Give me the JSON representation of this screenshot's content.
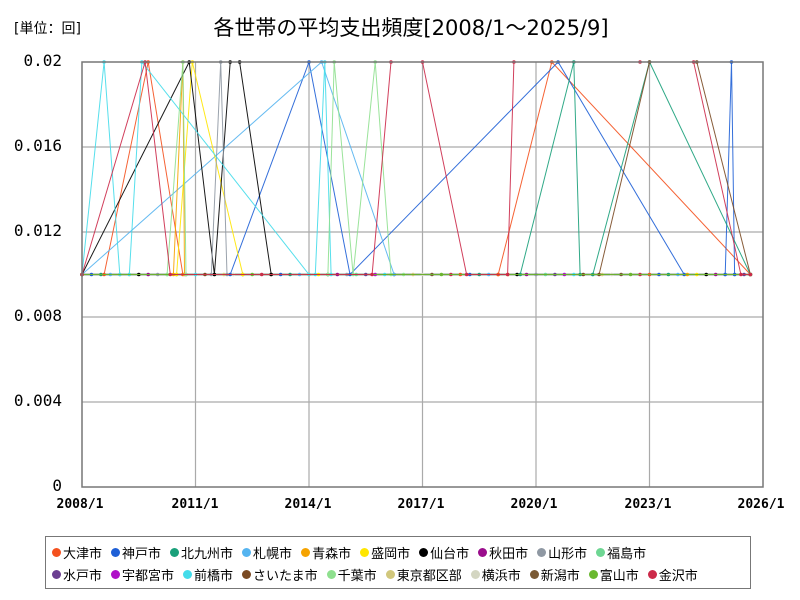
{
  "header": {
    "unit_label": "[単位：回]",
    "title": "各世帯の平均支出頻度[2008/1～2025/9]"
  },
  "chart_data": {
    "type": "line",
    "title": "各世帯の平均支出頻度[2008/1～2025/9]",
    "unit": "[単位：回]",
    "xlabel": "",
    "ylabel": "",
    "ylim": [
      0,
      0.02
    ],
    "xlim": [
      "2008/1",
      "2026/1"
    ],
    "grid": true,
    "legend_position": "bottom",
    "y_ticks": [
      "0.02",
      "0.016",
      "0.012",
      "0.008",
      "0.004",
      "0"
    ],
    "x_ticks": [
      "2008/1",
      "2011/1",
      "2014/1",
      "2017/1",
      "2020/1",
      "2023/1",
      "2026/1"
    ],
    "baseline_value": 0.01,
    "note": "Series mostly sit at 0.01; spikes to 0.02 listed as [month_index_from_2008/1, value] points (month 0 = 2008/1, month 212 = 2025/9).",
    "series": [
      {
        "name": "大津市",
        "color": "#f4511e",
        "points": [
          [
            0,
            0.01
          ],
          [
            7,
            0.01
          ],
          [
            21,
            0.02
          ],
          [
            32,
            0.01
          ],
          [
            132,
            0.01
          ],
          [
            149,
            0.02
          ],
          [
            212,
            0.01
          ]
        ]
      },
      {
        "name": "神戸市",
        "color": "#1e5fd6",
        "points": [
          [
            0,
            0.01
          ],
          [
            47,
            0.01
          ],
          [
            72,
            0.02
          ],
          [
            85,
            0.01
          ],
          [
            151,
            0.02
          ],
          [
            191,
            0.01
          ],
          [
            204,
            0.01
          ],
          [
            206,
            0.02
          ],
          [
            207,
            0.01
          ],
          [
            212,
            0.01
          ]
        ]
      },
      {
        "name": "北九州市",
        "color": "#1aa07a",
        "points": [
          [
            0,
            0.01
          ],
          [
            139,
            0.01
          ],
          [
            156,
            0.02
          ],
          [
            158,
            0.01
          ],
          [
            162,
            0.01
          ],
          [
            180,
            0.02
          ],
          [
            212,
            0.01
          ]
        ]
      },
      {
        "name": "札幌市",
        "color": "#55b4f0",
        "points": [
          [
            0,
            0.01
          ],
          [
            76,
            0.02
          ],
          [
            99,
            0.01
          ],
          [
            212,
            0.01
          ]
        ]
      },
      {
        "name": "青森市",
        "color": "#f5a300",
        "points": [
          [
            0,
            0.01
          ],
          [
            29,
            0.01
          ],
          [
            32,
            0.02
          ],
          [
            32.5,
            0.01
          ],
          [
            212,
            0.01
          ]
        ]
      },
      {
        "name": "盛岡市",
        "color": "#ffe600",
        "points": [
          [
            0,
            0.01
          ],
          [
            30,
            0.01
          ],
          [
            35,
            0.02
          ],
          [
            51,
            0.01
          ],
          [
            212,
            0.01
          ]
        ]
      },
      {
        "name": "仙台市",
        "color": "#000000",
        "points": [
          [
            0,
            0.01
          ],
          [
            34,
            0.02
          ],
          [
            42,
            0.01
          ],
          [
            47,
            0.02
          ],
          [
            50,
            0.02
          ],
          [
            60,
            0.01
          ],
          [
            212,
            0.01
          ]
        ]
      },
      {
        "name": "秋田市",
        "color": "#9a0d8c",
        "points": [
          [
            0,
            0.01
          ],
          [
            212,
            0.01
          ]
        ]
      },
      {
        "name": "山形市",
        "color": "#8f98a3",
        "points": [
          [
            0,
            0.01
          ],
          [
            41,
            0.01
          ],
          [
            44,
            0.02
          ],
          [
            46,
            0.01
          ],
          [
            212,
            0.01
          ]
        ]
      },
      {
        "name": "福島市",
        "color": "#6ed693",
        "points": [
          [
            0,
            0.01
          ],
          [
            212,
            0.01
          ]
        ]
      },
      {
        "name": "水戸市",
        "color": "#6b3f91",
        "points": [
          [
            0,
            0.01
          ],
          [
            212,
            0.01
          ]
        ]
      },
      {
        "name": "宇都宮市",
        "color": "#b011c8",
        "points": [
          [
            0,
            0.01
          ],
          [
            212,
            0.01
          ]
        ]
      },
      {
        "name": "前橋市",
        "color": "#44dcea",
        "points": [
          [
            0,
            0.01
          ],
          [
            7,
            0.02
          ],
          [
            12,
            0.01
          ],
          [
            15,
            0.01
          ],
          [
            19,
            0.02
          ],
          [
            72,
            0.01
          ],
          [
            74,
            0.01
          ],
          [
            77,
            0.02
          ],
          [
            79,
            0.01
          ],
          [
            212,
            0.01
          ]
        ]
      },
      {
        "name": "さいたま市",
        "color": "#7a4a23",
        "points": [
          [
            0,
            0.01
          ],
          [
            164,
            0.01
          ],
          [
            180,
            0.02
          ],
          [
            195,
            0.02
          ],
          [
            212,
            0.01
          ]
        ]
      },
      {
        "name": "千葉市",
        "color": "#8fe08f",
        "points": [
          [
            0,
            0.01
          ],
          [
            27,
            0.01
          ],
          [
            32,
            0.02
          ],
          [
            33,
            0.01
          ],
          [
            78,
            0.01
          ],
          [
            80,
            0.02
          ],
          [
            86,
            0.01
          ],
          [
            93,
            0.02
          ],
          [
            98,
            0.01
          ],
          [
            212,
            0.01
          ]
        ]
      },
      {
        "name": "東京都区部",
        "color": "#d1c77c",
        "points": [
          [
            0,
            0.01
          ],
          [
            212,
            0.01
          ]
        ]
      },
      {
        "name": "横浜市",
        "color": "#d4d6c2",
        "points": [
          [
            0,
            0.01
          ],
          [
            212,
            0.01
          ]
        ]
      },
      {
        "name": "新潟市",
        "color": "#7a5a35",
        "points": [
          [
            0,
            0.01
          ],
          [
            212,
            0.01
          ]
        ]
      },
      {
        "name": "富山市",
        "color": "#6ab830",
        "points": [
          [
            0,
            0.01
          ],
          [
            212,
            0.01
          ]
        ]
      },
      {
        "name": "金沢市",
        "color": "#cc2a4a",
        "points": [
          [
            0,
            0.01
          ],
          [
            20,
            0.02
          ],
          [
            28,
            0.01
          ],
          [
            92,
            0.01
          ],
          [
            98,
            0.02
          ],
          [
            108,
            0.02
          ],
          [
            122,
            0.01
          ],
          [
            135,
            0.01
          ],
          [
            137,
            0.02
          ],
          [
            177,
            0.02
          ],
          [
            194,
            0.02
          ],
          [
            209,
            0.01
          ],
          [
            212,
            0.01
          ]
        ]
      }
    ]
  },
  "legend": {
    "rows": [
      [
        {
          "label": "大津市",
          "color": "#f4511e"
        },
        {
          "label": "神戸市",
          "color": "#1e5fd6"
        },
        {
          "label": "北九州市",
          "color": "#1aa07a"
        },
        {
          "label": "札幌市",
          "color": "#55b4f0"
        },
        {
          "label": "青森市",
          "color": "#f5a300"
        },
        {
          "label": "盛岡市",
          "color": "#ffe600"
        },
        {
          "label": "仙台市",
          "color": "#000000"
        },
        {
          "label": "秋田市",
          "color": "#9a0d8c"
        },
        {
          "label": "山形市",
          "color": "#8f98a3"
        },
        {
          "label": "福島市",
          "color": "#6ed693"
        }
      ],
      [
        {
          "label": "水戸市",
          "color": "#6b3f91"
        },
        {
          "label": "宇都宮市",
          "color": "#b011c8"
        },
        {
          "label": "前橋市",
          "color": "#44dcea"
        },
        {
          "label": "さいたま市",
          "color": "#7a4a23"
        },
        {
          "label": "千葉市",
          "color": "#8fe08f"
        },
        {
          "label": "東京都区部",
          "color": "#d1c77c"
        },
        {
          "label": "横浜市",
          "color": "#d4d6c2"
        },
        {
          "label": "新潟市",
          "color": "#7a5a35"
        },
        {
          "label": "富山市",
          "color": "#6ab830"
        },
        {
          "label": "金沢市",
          "color": "#cc2a4a"
        }
      ]
    ]
  }
}
